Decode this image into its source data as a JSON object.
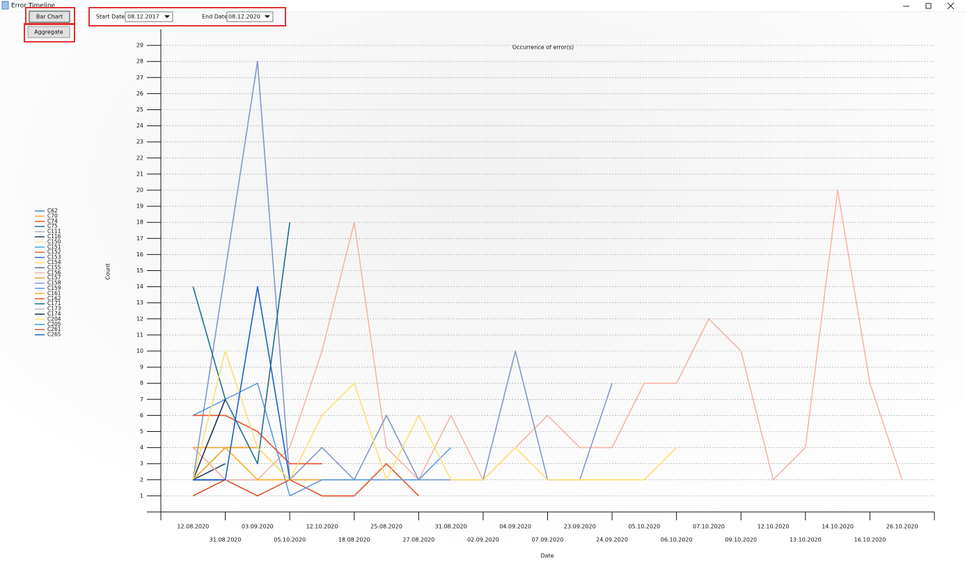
{
  "window": {
    "title": "Error Timeline"
  },
  "controls": {
    "bar_chart": "Bar Chart",
    "aggregate": "Aggregate",
    "start_date_label": "Start Date",
    "start_date": "08.12.2017",
    "end_date_label": "End Date",
    "end_date": "08.12.2020"
  },
  "chart_data": {
    "type": "line",
    "title": "Occurrence of error(s)",
    "x_label": "Date",
    "y_label": "Count",
    "categories": [
      "12.08.2020",
      "31.08.2020",
      "03.09.2020",
      "05.10.2020",
      "12.10.2020",
      "18.08.2020",
      "25.08.2020",
      "27.08.2020",
      "31.08.2020",
      "02.09.2020",
      "04.09.2020",
      "07.09.2020",
      "23.09.2020",
      "24.09.2020",
      "05.10.2020",
      "06.10.2020",
      "07.10.2020",
      "09.10.2020",
      "12.10.2020",
      "13.10.2020",
      "14.10.2020",
      "16.10.2020",
      "26.10.2020"
    ],
    "ylim": [
      0,
      30
    ],
    "yticks": [
      1,
      2,
      3,
      4,
      5,
      6,
      7,
      8,
      9,
      10,
      11,
      12,
      13,
      14,
      15,
      16,
      17,
      18,
      19,
      20,
      21,
      22,
      23,
      24,
      25,
      26,
      27,
      28,
      29
    ],
    "grid": true,
    "series": [
      {
        "name": "C62",
        "color": "#4a86c8",
        "values": [
          2,
          2,
          2,
          null,
          null,
          null,
          null,
          null,
          null,
          null,
          null,
          null,
          null,
          null,
          null,
          null,
          null,
          null,
          null,
          null,
          null,
          null,
          null
        ]
      },
      {
        "name": "C70",
        "color": "#f4a340",
        "values": [
          4,
          4,
          4,
          2,
          2,
          2,
          null,
          null,
          null,
          null,
          null,
          null,
          null,
          null,
          null,
          null,
          null,
          null,
          null,
          null,
          null,
          null,
          null
        ]
      },
      {
        "name": "C74",
        "color": "#e0502a",
        "values": [
          1,
          2,
          1,
          2,
          1,
          1,
          3,
          1,
          null,
          null,
          null,
          null,
          null,
          null,
          null,
          null,
          null,
          null,
          null,
          null,
          null,
          null,
          null
        ]
      },
      {
        "name": "C75",
        "color": "#2b6f8f",
        "values": [
          2,
          4,
          null,
          null,
          null,
          null,
          null,
          null,
          null,
          null,
          null,
          null,
          null,
          null,
          null,
          null,
          null,
          null,
          null,
          null,
          null,
          null,
          null
        ]
      },
      {
        "name": "C111",
        "color": "#b0b0b0",
        "values": [
          2,
          2,
          null,
          null,
          null,
          null,
          null,
          null,
          null,
          null,
          null,
          null,
          null,
          null,
          null,
          null,
          null,
          null,
          null,
          null,
          null,
          null,
          null
        ]
      },
      {
        "name": "C116",
        "color": "#1f3f5f",
        "values": [
          2,
          3,
          null,
          null,
          null,
          null,
          null,
          null,
          null,
          null,
          null,
          null,
          null,
          null,
          null,
          null,
          null,
          null,
          null,
          null,
          null,
          null,
          null
        ]
      },
      {
        "name": "C150",
        "color": "#ffe699",
        "values": [
          2,
          2,
          2,
          null,
          null,
          null,
          null,
          null,
          null,
          null,
          null,
          null,
          null,
          null,
          null,
          null,
          null,
          null,
          null,
          null,
          null,
          null,
          null
        ]
      },
      {
        "name": "C151",
        "color": "#4fa3e0",
        "values": [
          2,
          2,
          null,
          null,
          null,
          null,
          null,
          null,
          null,
          null,
          null,
          null,
          null,
          null,
          null,
          null,
          null,
          null,
          null,
          null,
          null,
          null,
          null
        ]
      },
      {
        "name": "C152",
        "color": "#e06a3a",
        "values": [
          4,
          2,
          null,
          null,
          null,
          null,
          null,
          null,
          null,
          null,
          null,
          null,
          null,
          null,
          null,
          null,
          null,
          null,
          null,
          null,
          null,
          null,
          null
        ]
      },
      {
        "name": "C153",
        "color": "#2a62b8",
        "values": [
          2,
          2,
          null,
          null,
          null,
          null,
          null,
          null,
          null,
          null,
          null,
          null,
          null,
          null,
          null,
          null,
          null,
          null,
          null,
          null,
          null,
          null,
          null
        ]
      },
      {
        "name": "C154",
        "color": "#ffd966",
        "values": [
          2,
          4,
          2,
          null,
          null,
          null,
          null,
          null,
          null,
          null,
          null,
          null,
          null,
          null,
          null,
          null,
          null,
          null,
          null,
          null,
          null,
          null,
          null
        ]
      },
      {
        "name": "C155",
        "color": "#5a7090",
        "values": [
          2,
          2,
          null,
          null,
          null,
          null,
          null,
          null,
          null,
          null,
          null,
          null,
          null,
          null,
          null,
          null,
          null,
          null,
          null,
          null,
          null,
          null,
          null
        ]
      },
      {
        "name": "C156",
        "color": "#f4b6a6",
        "values": [
          4,
          2,
          2,
          4,
          10,
          18,
          4,
          2,
          6,
          2,
          4,
          6,
          4,
          4,
          8,
          8,
          12,
          10,
          2,
          4,
          20,
          8,
          2
        ]
      },
      {
        "name": "C157",
        "color": "#f0a030",
        "values": [
          2,
          4,
          4,
          2,
          null,
          null,
          null,
          null,
          null,
          null,
          null,
          null,
          null,
          null,
          null,
          null,
          null,
          null,
          null,
          null,
          null,
          null,
          null
        ]
      },
      {
        "name": "C158",
        "color": "#8098c8",
        "values": [
          2,
          15,
          28,
          2,
          4,
          2,
          6,
          2,
          2,
          2,
          10,
          2,
          2,
          8,
          null,
          null,
          null,
          null,
          null,
          null,
          null,
          null,
          null
        ]
      },
      {
        "name": "C159",
        "color": "#5b9be0",
        "values": [
          6,
          7,
          8,
          1,
          2,
          2,
          2,
          2,
          4,
          null,
          null,
          null,
          null,
          null,
          null,
          null,
          null,
          null,
          null,
          null,
          null,
          null,
          null
        ]
      },
      {
        "name": "C161",
        "color": "#f5b030",
        "values": [
          2,
          4,
          2,
          2,
          null,
          null,
          null,
          null,
          null,
          null,
          null,
          null,
          null,
          null,
          null,
          null,
          null,
          null,
          null,
          null,
          null,
          null,
          null
        ]
      },
      {
        "name": "C162",
        "color": "#e8502a",
        "values": [
          6,
          6,
          5,
          3,
          3,
          null,
          null,
          null,
          null,
          null,
          null,
          null,
          null,
          null,
          null,
          null,
          null,
          null,
          null,
          null,
          null,
          null,
          null
        ]
      },
      {
        "name": "C171",
        "color": "#1e6e8e",
        "values": [
          14,
          7,
          3,
          18,
          null,
          null,
          null,
          null,
          null,
          null,
          null,
          null,
          null,
          null,
          null,
          null,
          null,
          null,
          null,
          null,
          null,
          null,
          null
        ]
      },
      {
        "name": "C173",
        "color": "#b8b8c8",
        "values": [
          2,
          2,
          null,
          null,
          null,
          null,
          null,
          null,
          null,
          null,
          null,
          null,
          null,
          null,
          null,
          null,
          null,
          null,
          null,
          null,
          null,
          null,
          null
        ]
      },
      {
        "name": "C174",
        "color": "#1a3050",
        "values": [
          2,
          7,
          null,
          null,
          null,
          null,
          null,
          null,
          null,
          null,
          null,
          null,
          null,
          null,
          null,
          null,
          null,
          null,
          null,
          null,
          null,
          null,
          null
        ]
      },
      {
        "name": "C204",
        "color": "#ffe070",
        "values": [
          2,
          10,
          4,
          2,
          6,
          8,
          2,
          6,
          2,
          2,
          4,
          2,
          2,
          2,
          2,
          4,
          null,
          null,
          null,
          null,
          null,
          null,
          null
        ]
      },
      {
        "name": "C205",
        "color": "#3aa0d8",
        "values": [
          2,
          2,
          null,
          null,
          null,
          null,
          null,
          null,
          null,
          null,
          null,
          null,
          null,
          null,
          null,
          null,
          null,
          null,
          null,
          null,
          null,
          null,
          null
        ]
      },
      {
        "name": "C261",
        "color": "#d05a40",
        "values": [
          2,
          2,
          null,
          null,
          null,
          null,
          null,
          null,
          null,
          null,
          null,
          null,
          null,
          null,
          null,
          null,
          null,
          null,
          null,
          null,
          null,
          null,
          null
        ]
      },
      {
        "name": "C265",
        "color": "#1a60c8",
        "values": [
          2,
          2,
          14,
          2,
          null,
          null,
          null,
          null,
          null,
          null,
          null,
          null,
          null,
          null,
          null,
          null,
          null,
          null,
          null,
          null,
          null,
          null,
          null
        ]
      }
    ]
  }
}
